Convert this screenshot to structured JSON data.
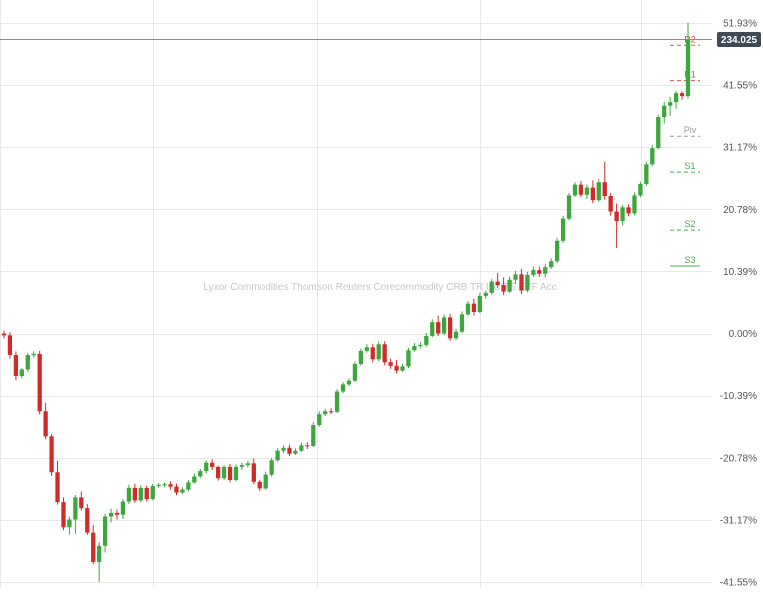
{
  "watermark": "Lyxor Commodities Thomson Reuters Corecommodity CRB TR UCITS ETF Acc",
  "colors": {
    "up": "#3da73d",
    "down": "#d02a2a",
    "resistance": "#d9534f",
    "support": "#4cae4c",
    "pivot": "#999999",
    "grid": "#e8e8e8",
    "price_label_bg": "#3f4a57"
  },
  "price_label": "234.025",
  "chart_data": {
    "type": "candlestick",
    "y_unit": "%",
    "ylim": [
      -41.55,
      52.0
    ],
    "y_ticks": [
      {
        "value": 51.93,
        "label": "51.93%"
      },
      {
        "value": 41.55,
        "label": "41.55%"
      },
      {
        "value": 31.17,
        "label": "31.17%"
      },
      {
        "value": 20.78,
        "label": "20.78%"
      },
      {
        "value": 10.39,
        "label": "10.39%"
      },
      {
        "value": 0,
        "label": "0.00%"
      },
      {
        "value": -10.39,
        "label": "-10.39%"
      },
      {
        "value": -20.78,
        "label": "-20.78%"
      },
      {
        "value": -31.17,
        "label": "-31.17%"
      },
      {
        "value": -41.55,
        "label": "-41.55%"
      }
    ],
    "current_value": 49.2,
    "pivot_levels": [
      {
        "label": "R2",
        "value": 48.2,
        "kind": "resistance"
      },
      {
        "label": "R1",
        "value": 42.3,
        "kind": "resistance"
      },
      {
        "label": "Piv",
        "value": 33.0,
        "kind": "pivot"
      },
      {
        "label": "S1",
        "value": 27.0,
        "kind": "support"
      },
      {
        "label": "S2",
        "value": 17.3,
        "kind": "support"
      },
      {
        "label": "S3",
        "value": 11.3,
        "kind": "support"
      }
    ],
    "candles": [
      [
        0.0,
        0.5,
        -0.8,
        -0.3
      ],
      [
        -0.3,
        0.2,
        -4.2,
        -3.6
      ],
      [
        -3.6,
        -3.0,
        -7.8,
        -7.1
      ],
      [
        -7.1,
        -5.8,
        -7.5,
        -6.0
      ],
      [
        -6.0,
        -3.2,
        -6.4,
        -3.6
      ],
      [
        -3.6,
        -3.0,
        -4.0,
        -3.4
      ],
      [
        -3.4,
        -2.9,
        -13.5,
        -13.0
      ],
      [
        -13.0,
        -11.6,
        -17.7,
        -17.2
      ],
      [
        -17.2,
        -16.8,
        -23.8,
        -23.2
      ],
      [
        -23.2,
        -21.3,
        -28.6,
        -28.2
      ],
      [
        -28.2,
        -27.4,
        -32.9,
        -32.4
      ],
      [
        -32.4,
        -30.6,
        -33.6,
        -31.1
      ],
      [
        -31.1,
        -27.0,
        -33.5,
        -27.4
      ],
      [
        -27.4,
        -26.4,
        -29.6,
        -29.2
      ],
      [
        -29.2,
        -28.5,
        -33.7,
        -33.3
      ],
      [
        -33.3,
        -32.0,
        -38.6,
        -38.2
      ],
      [
        -38.2,
        -34.9,
        -41.5,
        -35.5
      ],
      [
        -35.5,
        -30.1,
        -36.6,
        -30.6
      ],
      [
        -30.6,
        -29.3,
        -31.6,
        -30.0
      ],
      [
        -30.0,
        -29.4,
        -31.1,
        -30.3
      ],
      [
        -30.3,
        -27.7,
        -31.0,
        -28.1
      ],
      [
        -28.1,
        -25.3,
        -28.5,
        -25.8
      ],
      [
        -25.8,
        -25.1,
        -28.3,
        -27.9
      ],
      [
        -27.9,
        -25.4,
        -28.2,
        -25.8
      ],
      [
        -25.8,
        -25.4,
        -28.1,
        -27.7
      ],
      [
        -27.7,
        -25.1,
        -27.9,
        -25.5
      ],
      [
        -25.5,
        -25.0,
        -25.8,
        -25.3
      ],
      [
        -25.3,
        -24.9,
        -25.7,
        -25.2
      ],
      [
        -25.2,
        -24.7,
        -26.1,
        -25.6
      ],
      [
        -25.6,
        -25.1,
        -27.0,
        -26.6
      ],
      [
        -26.6,
        -25.7,
        -26.8,
        -26.1
      ],
      [
        -26.1,
        -24.5,
        -26.4,
        -24.9
      ],
      [
        -24.9,
        -23.5,
        -25.1,
        -23.9
      ],
      [
        -23.9,
        -22.6,
        -24.1,
        -23.0
      ],
      [
        -23.0,
        -21.2,
        -23.4,
        -21.6
      ],
      [
        -21.6,
        -21.0,
        -22.8,
        -22.3
      ],
      [
        -22.3,
        -22.1,
        -24.6,
        -24.2
      ],
      [
        -24.2,
        -22.0,
        -24.5,
        -22.3
      ],
      [
        -22.3,
        -21.8,
        -24.9,
        -24.5
      ],
      [
        -24.5,
        -21.9,
        -24.7,
        -22.3
      ],
      [
        -22.3,
        -21.6,
        -22.8,
        -22.0
      ],
      [
        -22.0,
        -21.3,
        -22.4,
        -21.7
      ],
      [
        -21.7,
        -20.9,
        -25.2,
        -24.8
      ],
      [
        -24.8,
        -24.5,
        -26.3,
        -25.9
      ],
      [
        -25.9,
        -23.1,
        -26.1,
        -23.6
      ],
      [
        -23.6,
        -20.8,
        -23.9,
        -21.2
      ],
      [
        -21.2,
        -19.2,
        -21.4,
        -19.6
      ],
      [
        -19.6,
        -18.7,
        -20.0,
        -19.1
      ],
      [
        -19.1,
        -18.6,
        -20.5,
        -20.1
      ],
      [
        -20.1,
        -19.2,
        -20.3,
        -19.6
      ],
      [
        -19.6,
        -18.2,
        -19.8,
        -18.7
      ],
      [
        -18.7,
        -18.2,
        -19.3,
        -18.8
      ],
      [
        -18.8,
        -14.8,
        -19.0,
        -15.3
      ],
      [
        -15.3,
        -13.0,
        -15.6,
        -13.5
      ],
      [
        -13.5,
        -12.6,
        -13.8,
        -13.0
      ],
      [
        -13.0,
        -12.5,
        -13.5,
        -13.1
      ],
      [
        -13.1,
        -9.3,
        -13.3,
        -9.7
      ],
      [
        -9.7,
        -8.1,
        -10.0,
        -8.5
      ],
      [
        -8.5,
        -7.5,
        -8.8,
        -7.9
      ],
      [
        -7.9,
        -4.7,
        -8.1,
        -5.1
      ],
      [
        -5.1,
        -2.5,
        -5.4,
        -2.9
      ],
      [
        -2.9,
        -1.8,
        -3.2,
        -2.3
      ],
      [
        -2.3,
        -1.7,
        -4.8,
        -4.3
      ],
      [
        -4.3,
        -1.3,
        -4.6,
        -1.8
      ],
      [
        -1.8,
        -1.3,
        -5.3,
        -4.8
      ],
      [
        -4.8,
        -4.2,
        -5.9,
        -5.4
      ],
      [
        -5.4,
        -4.4,
        -6.7,
        -6.2
      ],
      [
        -6.2,
        -5.1,
        -6.4,
        -5.5
      ],
      [
        -5.5,
        -2.4,
        -5.8,
        -2.8
      ],
      [
        -2.8,
        -1.6,
        -3.0,
        -2.1
      ],
      [
        -2.1,
        -1.4,
        -2.5,
        -1.9
      ],
      [
        -1.9,
        0.1,
        -2.2,
        -0.4
      ],
      [
        -0.4,
        2.4,
        -0.6,
        1.9
      ],
      [
        1.9,
        3.0,
        -0.4,
        0.0
      ],
      [
        0.0,
        3.2,
        -0.2,
        2.7
      ],
      [
        2.7,
        3.3,
        -1.2,
        -0.8
      ],
      [
        -0.8,
        0.8,
        -1.1,
        0.3
      ],
      [
        0.3,
        3.7,
        0.1,
        3.2
      ],
      [
        3.2,
        5.4,
        3.0,
        5.0
      ],
      [
        5.0,
        5.8,
        3.0,
        3.6
      ],
      [
        3.6,
        6.8,
        3.4,
        6.3
      ],
      [
        6.3,
        7.2,
        5.8,
        6.8
      ],
      [
        6.8,
        9.1,
        6.5,
        8.7
      ],
      [
        8.7,
        10.1,
        7.6,
        8.1
      ],
      [
        8.1,
        9.4,
        6.4,
        7.0
      ],
      [
        7.0,
        9.5,
        6.8,
        9.0
      ],
      [
        9.0,
        10.5,
        8.3,
        9.9
      ],
      [
        9.9,
        10.8,
        6.6,
        7.2
      ],
      [
        7.2,
        10.3,
        6.9,
        9.8
      ],
      [
        9.8,
        11.2,
        9.5,
        10.6
      ],
      [
        10.6,
        11.2,
        9.5,
        10.0
      ],
      [
        10.0,
        11.6,
        9.4,
        11.1
      ],
      [
        11.1,
        12.6,
        10.8,
        12.1
      ],
      [
        12.1,
        16.0,
        11.8,
        15.5
      ],
      [
        15.5,
        19.7,
        15.2,
        19.2
      ],
      [
        19.2,
        23.5,
        18.9,
        23.1
      ],
      [
        23.1,
        25.3,
        22.8,
        24.9
      ],
      [
        24.9,
        25.5,
        22.8,
        23.2
      ],
      [
        23.2,
        24.9,
        22.5,
        24.4
      ],
      [
        24.4,
        25.6,
        21.8,
        22.3
      ],
      [
        22.3,
        25.8,
        22.0,
        25.3
      ],
      [
        25.3,
        28.7,
        22.4,
        23.0
      ],
      [
        23.0,
        23.5,
        19.7,
        20.4
      ],
      [
        20.4,
        21.7,
        14.3,
        18.8
      ],
      [
        18.8,
        21.5,
        18.1,
        21.1
      ],
      [
        21.1,
        21.6,
        19.6,
        20.1
      ],
      [
        20.1,
        23.6,
        19.8,
        23.1
      ],
      [
        23.1,
        25.4,
        22.8,
        25.0
      ],
      [
        25.0,
        28.7,
        24.7,
        28.3
      ],
      [
        28.3,
        31.5,
        28.0,
        31.0
      ],
      [
        31.0,
        36.6,
        30.8,
        36.2
      ],
      [
        36.2,
        38.7,
        35.1,
        38.1
      ],
      [
        38.1,
        39.6,
        36.4,
        38.7
      ],
      [
        38.7,
        40.6,
        37.6,
        40.2
      ],
      [
        40.2,
        40.5,
        39.1,
        39.7
      ],
      [
        39.7,
        52.0,
        39.3,
        49.2
      ]
    ]
  }
}
